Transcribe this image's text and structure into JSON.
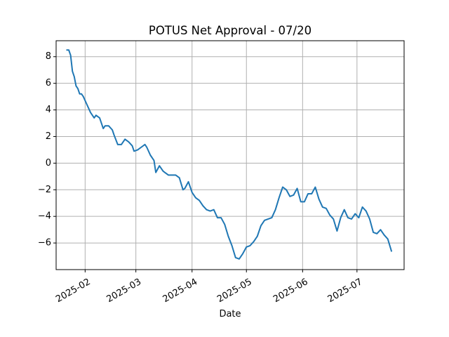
{
  "chart_data": {
    "type": "line",
    "title": "POTUS Net Approval - 07/20",
    "xlabel": "Date",
    "ylabel": "",
    "x_ticks": [
      "2025-02-01",
      "2025-03-01",
      "2025-04-01",
      "2025-05-01",
      "2025-06-01",
      "2025-07-01"
    ],
    "x_tick_labels": [
      "2025-02",
      "2025-03",
      "2025-04",
      "2025-05",
      "2025-06",
      "2025-07"
    ],
    "y_ticks": [
      -6,
      -4,
      -2,
      0,
      2,
      4,
      6,
      8
    ],
    "y_tick_labels": [
      "−6",
      "−4",
      "−2",
      "0",
      "2",
      "4",
      "6",
      "8"
    ],
    "xlim": [
      "2025-01-16",
      "2025-07-27"
    ],
    "ylim": [
      -8.0,
      9.2
    ],
    "grid": true,
    "color": "#1f77b4",
    "series": [
      {
        "x": [
          "2025-01-22",
          "2025-01-23",
          "2025-01-24",
          "2025-01-25",
          "2025-01-26",
          "2025-01-27",
          "2025-01-28",
          "2025-01-29",
          "2025-01-30",
          "2025-01-31",
          "2025-02-02",
          "2025-02-04",
          "2025-02-06",
          "2025-02-07",
          "2025-02-09",
          "2025-02-11",
          "2025-02-12",
          "2025-02-14",
          "2025-02-16",
          "2025-02-17",
          "2025-02-19",
          "2025-02-21",
          "2025-02-23",
          "2025-02-25",
          "2025-02-27",
          "2025-02-28",
          "2025-03-02",
          "2025-03-04",
          "2025-03-06",
          "2025-03-07",
          "2025-03-09",
          "2025-03-11",
          "2025-03-12",
          "2025-03-14",
          "2025-03-16",
          "2025-03-17",
          "2025-03-19",
          "2025-03-21",
          "2025-03-23",
          "2025-03-25",
          "2025-03-27",
          "2025-03-28",
          "2025-03-30",
          "2025-04-01",
          "2025-04-03",
          "2025-04-05",
          "2025-04-07",
          "2025-04-09",
          "2025-04-11",
          "2025-04-13",
          "2025-04-15",
          "2025-04-17",
          "2025-04-19",
          "2025-04-21",
          "2025-04-23",
          "2025-04-25",
          "2025-04-27",
          "2025-04-29",
          "2025-05-01",
          "2025-05-03",
          "2025-05-05",
          "2025-05-07",
          "2025-05-09",
          "2025-05-11",
          "2025-05-13",
          "2025-05-15",
          "2025-05-17",
          "2025-05-19",
          "2025-05-21",
          "2025-05-23",
          "2025-05-25",
          "2025-05-27",
          "2025-05-29",
          "2025-05-31",
          "2025-06-02",
          "2025-06-04",
          "2025-06-06",
          "2025-06-08",
          "2025-06-10",
          "2025-06-12",
          "2025-06-14",
          "2025-06-16",
          "2025-06-18",
          "2025-06-20",
          "2025-06-22",
          "2025-06-24",
          "2025-06-26",
          "2025-06-28",
          "2025-06-30",
          "2025-07-02",
          "2025-07-04",
          "2025-07-06",
          "2025-07-08",
          "2025-07-10",
          "2025-07-12",
          "2025-07-14",
          "2025-07-16",
          "2025-07-18",
          "2025-07-20"
        ],
        "values": [
          8.5,
          8.5,
          8.1,
          6.9,
          6.5,
          5.8,
          5.6,
          5.2,
          5.2,
          5.0,
          4.4,
          3.8,
          3.4,
          3.6,
          3.4,
          2.6,
          2.8,
          2.8,
          2.5,
          2.1,
          1.4,
          1.4,
          1.8,
          1.6,
          1.3,
          0.9,
          1.0,
          1.2,
          1.4,
          1.2,
          0.6,
          0.2,
          -0.7,
          -0.2,
          -0.6,
          -0.7,
          -0.9,
          -0.9,
          -0.9,
          -1.1,
          -2.0,
          -1.9,
          -1.4,
          -2.2,
          -2.6,
          -2.8,
          -3.2,
          -3.5,
          -3.6,
          -3.5,
          -4.1,
          -4.1,
          -4.6,
          -5.5,
          -6.2,
          -7.1,
          -7.2,
          -6.8,
          -6.3,
          -6.2,
          -5.9,
          -5.5,
          -4.7,
          -4.3,
          -4.2,
          -4.1,
          -3.5,
          -2.6,
          -1.8,
          -2.0,
          -2.5,
          -2.4,
          -1.9,
          -2.9,
          -2.9,
          -2.3,
          -2.3,
          -1.8,
          -2.7,
          -3.3,
          -3.4,
          -3.9,
          -4.2,
          -5.1,
          -4.1,
          -3.5,
          -4.1,
          -4.2,
          -3.8,
          -4.1,
          -3.3,
          -3.6,
          -4.2,
          -5.2,
          -5.3,
          -5.0,
          -5.4,
          -5.7,
          -6.6
        ]
      }
    ]
  }
}
